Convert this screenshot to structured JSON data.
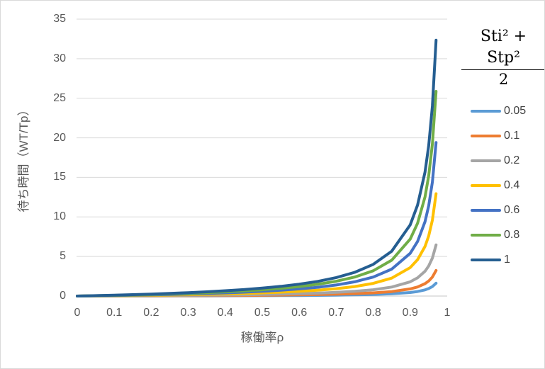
{
  "colors": {
    "background": "#FFFFFF",
    "border": "#D9D9D9",
    "gridline": "#D9D9D9",
    "axis_line": "#C6C6C6",
    "tick_text": "#595959",
    "axis_title_text": "#595959",
    "legend_text": "#404040",
    "formula_text": "#000000"
  },
  "legend": {
    "numerator": "Sti² + Stp²",
    "denominator": "2"
  },
  "chart_data": {
    "type": "line",
    "title": "",
    "xlabel": "稼働率ρ",
    "ylabel": "待ち時間（WT/Tp）",
    "xlim": [
      0,
      1
    ],
    "ylim": [
      0,
      35
    ],
    "grid": "horizontal",
    "legend_position": "right",
    "x_ticks": [
      "0",
      "0.1",
      "0.2",
      "0.3",
      "0.4",
      "0.5",
      "0.6",
      "0.7",
      "0.8",
      "0.9",
      "1"
    ],
    "x_tick_values": [
      0,
      0.1,
      0.2,
      0.3,
      0.4,
      0.5,
      0.6,
      0.7,
      0.8,
      0.9,
      1
    ],
    "y_ticks": [
      "0",
      "5",
      "10",
      "15",
      "20",
      "25",
      "30",
      "35"
    ],
    "y_tick_values": [
      0,
      5,
      10,
      15,
      20,
      25,
      30,
      35
    ],
    "x": [
      0,
      0.05,
      0.1,
      0.15,
      0.2,
      0.25,
      0.3,
      0.35,
      0.4,
      0.45,
      0.5,
      0.55,
      0.6,
      0.65,
      0.7,
      0.75,
      0.8,
      0.85,
      0.9,
      0.92,
      0.94,
      0.95,
      0.96,
      0.97
    ],
    "series": [
      {
        "name": "0.05",
        "color": "#5B9BD5",
        "values": [
          0,
          0.003,
          0.006,
          0.009,
          0.013,
          0.017,
          0.021,
          0.027,
          0.033,
          0.041,
          0.05,
          0.061,
          0.075,
          0.093,
          0.117,
          0.15,
          0.2,
          0.283,
          0.45,
          0.575,
          0.783,
          0.95,
          1.2,
          1.617
        ]
      },
      {
        "name": "0.1",
        "color": "#ED7D31",
        "values": [
          0,
          0.005,
          0.011,
          0.018,
          0.025,
          0.033,
          0.043,
          0.054,
          0.067,
          0.082,
          0.1,
          0.122,
          0.15,
          0.186,
          0.233,
          0.3,
          0.4,
          0.567,
          0.9,
          1.15,
          1.567,
          1.9,
          2.4,
          3.233
        ]
      },
      {
        "name": "0.2",
        "color": "#A5A5A5",
        "values": [
          0,
          0.011,
          0.022,
          0.035,
          0.05,
          0.067,
          0.086,
          0.108,
          0.133,
          0.164,
          0.2,
          0.244,
          0.3,
          0.371,
          0.467,
          0.6,
          0.8,
          1.133,
          1.8,
          2.3,
          3.133,
          3.8,
          4.8,
          6.467
        ]
      },
      {
        "name": "0.4",
        "color": "#FFC000",
        "values": [
          0,
          0.021,
          0.044,
          0.071,
          0.1,
          0.133,
          0.171,
          0.215,
          0.267,
          0.327,
          0.4,
          0.489,
          0.6,
          0.743,
          0.933,
          1.2,
          1.6,
          2.267,
          3.6,
          4.6,
          6.267,
          7.6,
          9.6,
          12.933
        ]
      },
      {
        "name": "0.6",
        "color": "#4472C4",
        "values": [
          0,
          0.032,
          0.067,
          0.106,
          0.15,
          0.2,
          0.257,
          0.323,
          0.4,
          0.491,
          0.6,
          0.733,
          0.9,
          1.114,
          1.4,
          1.8,
          2.4,
          3.4,
          5.4,
          6.9,
          9.4,
          11.4,
          14.4,
          19.4
        ]
      },
      {
        "name": "0.8",
        "color": "#70AD47",
        "values": [
          0,
          0.042,
          0.089,
          0.141,
          0.2,
          0.267,
          0.343,
          0.431,
          0.533,
          0.655,
          0.8,
          0.978,
          1.2,
          1.486,
          1.867,
          2.4,
          3.2,
          4.533,
          7.2,
          9.2,
          12.533,
          15.2,
          19.2,
          25.867
        ]
      },
      {
        "name": "1",
        "color": "#255E91",
        "values": [
          0,
          0.053,
          0.111,
          0.176,
          0.25,
          0.333,
          0.429,
          0.538,
          0.667,
          0.818,
          1,
          1.222,
          1.5,
          1.857,
          2.333,
          3,
          4,
          5.667,
          9,
          11.5,
          15.667,
          19,
          24,
          32.333
        ]
      }
    ]
  }
}
